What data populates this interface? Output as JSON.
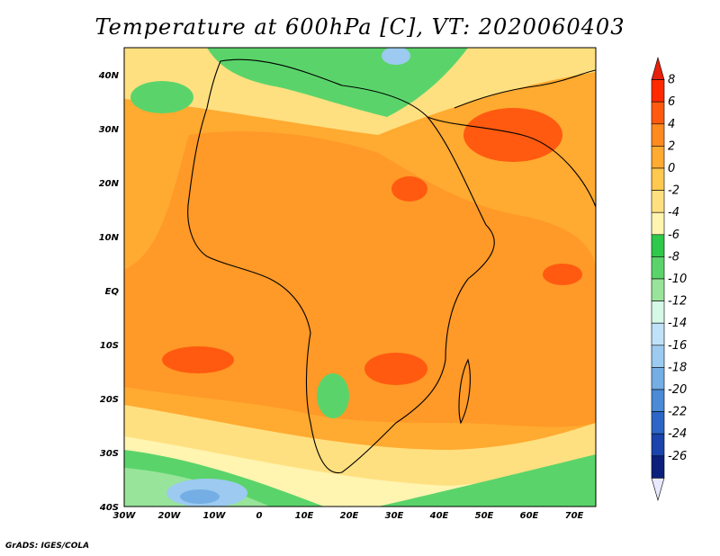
{
  "title": "Temperature at 600hPa [C], VT: 2020060403",
  "credit": "GrADS: IGES/COLA",
  "lat_labels": [
    "40N",
    "30N",
    "20N",
    "10N",
    "EQ",
    "10S",
    "20S",
    "30S",
    "40S"
  ],
  "lon_labels": [
    "30W",
    "20W",
    "10W",
    "0",
    "10E",
    "20E",
    "30E",
    "40E",
    "50E",
    "60E",
    "70E"
  ],
  "colorbar": {
    "labels": [
      "8",
      "6",
      "4",
      "2",
      "0",
      "-2",
      "-4",
      "-6",
      "-8",
      "-10",
      "-12",
      "-14",
      "-16",
      "-18",
      "-20",
      "-22",
      "-24",
      "-26"
    ],
    "colors": [
      "#ff2a00",
      "#ff5a10",
      "#ff8a20",
      "#ffaa30",
      "#ffc850",
      "#ffe080",
      "#fff4b0",
      "#2ec84a",
      "#5ad46a",
      "#98e49a",
      "#d6f8e6",
      "#bfe2f8",
      "#9ccaf0",
      "#74aee4",
      "#4a8ad6",
      "#2c66c6",
      "#1a44ac",
      "#0c1f7c"
    ]
  },
  "map_fields": {
    "background": "#ffaa30",
    "regions": [
      {
        "name": "warm-sahara",
        "color": "#ff8a20"
      },
      {
        "name": "hot-arabia",
        "color": "#ff5a10"
      },
      {
        "name": "cool-mediterranean",
        "color": "#5ad46a"
      },
      {
        "name": "cold-south",
        "color": "#98e49a"
      },
      {
        "name": "coldest-south",
        "color": "#9ccaf0"
      }
    ]
  }
}
